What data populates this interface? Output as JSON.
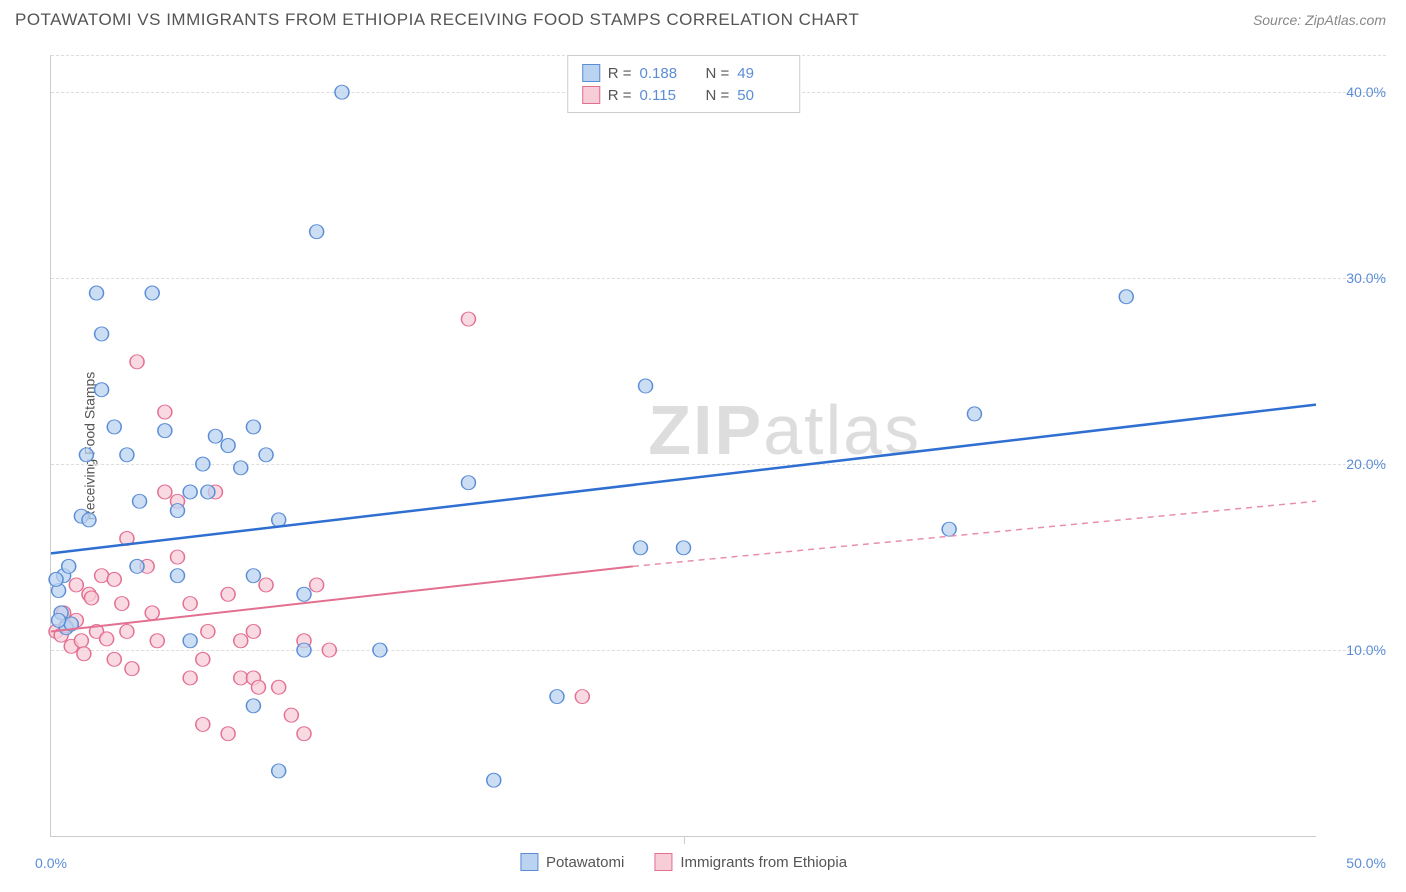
{
  "header": {
    "title": "POTAWATOMI VS IMMIGRANTS FROM ETHIOPIA RECEIVING FOOD STAMPS CORRELATION CHART",
    "source": "Source: ZipAtlas.com"
  },
  "watermark": {
    "zip": "ZIP",
    "atlas": "atlas"
  },
  "axes": {
    "y_label": "Receiving Food Stamps",
    "xlim": [
      0,
      50
    ],
    "ylim": [
      0,
      42
    ],
    "x_ticks": [
      0,
      25,
      50
    ],
    "x_tick_labels": [
      "0.0%",
      "",
      "50.0%"
    ],
    "y_ticks": [
      10,
      20,
      30,
      40
    ],
    "y_tick_labels": [
      "10.0%",
      "20.0%",
      "30.0%",
      "40.0%"
    ],
    "grid_color": "#dddddd",
    "axis_color": "#cccccc",
    "tick_label_color": "#5b8dd6"
  },
  "legend_top": {
    "rows": [
      {
        "swatch_fill": "#b9d3f0",
        "swatch_stroke": "#5b8dd6",
        "r_label": "R =",
        "r_value": "0.188",
        "n_label": "N =",
        "n_value": "49"
      },
      {
        "swatch_fill": "#f7cdd8",
        "swatch_stroke": "#e36f91",
        "r_label": "R =",
        "r_value": "0.115",
        "n_label": "N =",
        "n_value": "50"
      }
    ]
  },
  "legend_bottom": {
    "items": [
      {
        "swatch_fill": "#b9d3f0",
        "swatch_stroke": "#5b8dd6",
        "label": "Potawatomi"
      },
      {
        "swatch_fill": "#f7cdd8",
        "swatch_stroke": "#e36f91",
        "label": "Immigrants from Ethiopia"
      }
    ]
  },
  "series": {
    "blue": {
      "color_fill": "#b9d3f0",
      "color_stroke": "#5b8dd6",
      "marker_radius": 7,
      "marker_opacity": 0.75,
      "trend": {
        "x1": 0,
        "y1": 15.2,
        "x2": 50,
        "y2": 23.2,
        "stroke": "#2f6fd1",
        "width": 2.5
      },
      "points": [
        [
          0.3,
          13.2
        ],
        [
          0.5,
          14.0
        ],
        [
          0.4,
          12.0
        ],
        [
          0.6,
          11.2
        ],
        [
          0.8,
          11.4
        ],
        [
          0.7,
          14.5
        ],
        [
          1.2,
          17.2
        ],
        [
          1.5,
          17.0
        ],
        [
          1.8,
          29.2
        ],
        [
          2.0,
          27.0
        ],
        [
          2.0,
          24.0
        ],
        [
          1.4,
          20.5
        ],
        [
          2.5,
          22.0
        ],
        [
          3.0,
          20.5
        ],
        [
          3.5,
          18.0
        ],
        [
          4.0,
          29.2
        ],
        [
          3.4,
          14.5
        ],
        [
          4.5,
          21.8
        ],
        [
          5.0,
          17.5
        ],
        [
          5.5,
          18.5
        ],
        [
          5.0,
          14.0
        ],
        [
          5.5,
          10.5
        ],
        [
          6.2,
          18.5
        ],
        [
          6.0,
          20.0
        ],
        [
          6.5,
          21.5
        ],
        [
          7.0,
          21.0
        ],
        [
          7.5,
          19.8
        ],
        [
          8.0,
          22.0
        ],
        [
          8.5,
          20.5
        ],
        [
          9.0,
          17.0
        ],
        [
          8.0,
          14.0
        ],
        [
          8.0,
          7.0
        ],
        [
          9.0,
          3.5
        ],
        [
          10.0,
          10.0
        ],
        [
          10.0,
          13.0
        ],
        [
          10.5,
          32.5
        ],
        [
          11.5,
          40.0
        ],
        [
          13.0,
          10.0
        ],
        [
          16.5,
          19.0
        ],
        [
          17.5,
          3.0
        ],
        [
          20.0,
          7.5
        ],
        [
          23.5,
          24.2
        ],
        [
          23.3,
          15.5
        ],
        [
          25.0,
          15.5
        ],
        [
          35.5,
          16.5
        ],
        [
          36.5,
          22.7
        ],
        [
          42.5,
          29.0
        ],
        [
          0.2,
          13.8
        ],
        [
          0.3,
          11.6
        ]
      ]
    },
    "pink": {
      "color_fill": "#f7cdd8",
      "color_stroke": "#e36f91",
      "marker_radius": 7,
      "marker_opacity": 0.75,
      "trend_solid": {
        "x1": 0,
        "y1": 11.0,
        "x2": 23,
        "y2": 14.5,
        "stroke": "#e36f91",
        "width": 2
      },
      "trend_dashed": {
        "x1": 23,
        "y1": 14.5,
        "x2": 50,
        "y2": 18.0,
        "stroke": "#e98fa9",
        "width": 1.5,
        "dash": "6,5"
      },
      "points": [
        [
          0.2,
          11.0
        ],
        [
          0.4,
          10.8
        ],
        [
          0.5,
          12.0
        ],
        [
          0.6,
          11.3
        ],
        [
          0.8,
          10.2
        ],
        [
          1.0,
          11.6
        ],
        [
          1.2,
          10.5
        ],
        [
          1.3,
          9.8
        ],
        [
          1.5,
          13.0
        ],
        [
          1.6,
          12.8
        ],
        [
          1.8,
          11.0
        ],
        [
          2.0,
          14.0
        ],
        [
          2.2,
          10.6
        ],
        [
          2.5,
          13.8
        ],
        [
          2.5,
          9.5
        ],
        [
          2.8,
          12.5
        ],
        [
          3.0,
          16.0
        ],
        [
          3.0,
          11.0
        ],
        [
          3.2,
          9.0
        ],
        [
          3.4,
          25.5
        ],
        [
          3.8,
          14.5
        ],
        [
          4.0,
          12.0
        ],
        [
          4.2,
          10.5
        ],
        [
          4.5,
          18.5
        ],
        [
          4.5,
          22.8
        ],
        [
          5.0,
          15.0
        ],
        [
          5.0,
          18.0
        ],
        [
          5.5,
          12.5
        ],
        [
          5.5,
          8.5
        ],
        [
          6.0,
          9.5
        ],
        [
          6.2,
          11.0
        ],
        [
          6.0,
          6.0
        ],
        [
          6.5,
          18.5
        ],
        [
          7.0,
          13.0
        ],
        [
          7.0,
          5.5
        ],
        [
          7.5,
          8.5
        ],
        [
          7.5,
          10.5
        ],
        [
          8.0,
          8.5
        ],
        [
          8.2,
          8.0
        ],
        [
          8.0,
          11.0
        ],
        [
          8.5,
          13.5
        ],
        [
          9.0,
          8.0
        ],
        [
          9.5,
          6.5
        ],
        [
          10.0,
          5.5
        ],
        [
          10.0,
          10.5
        ],
        [
          10.5,
          13.5
        ],
        [
          11.0,
          10.0
        ],
        [
          16.5,
          27.8
        ],
        [
          21.0,
          7.5
        ],
        [
          1.0,
          13.5
        ]
      ]
    }
  }
}
